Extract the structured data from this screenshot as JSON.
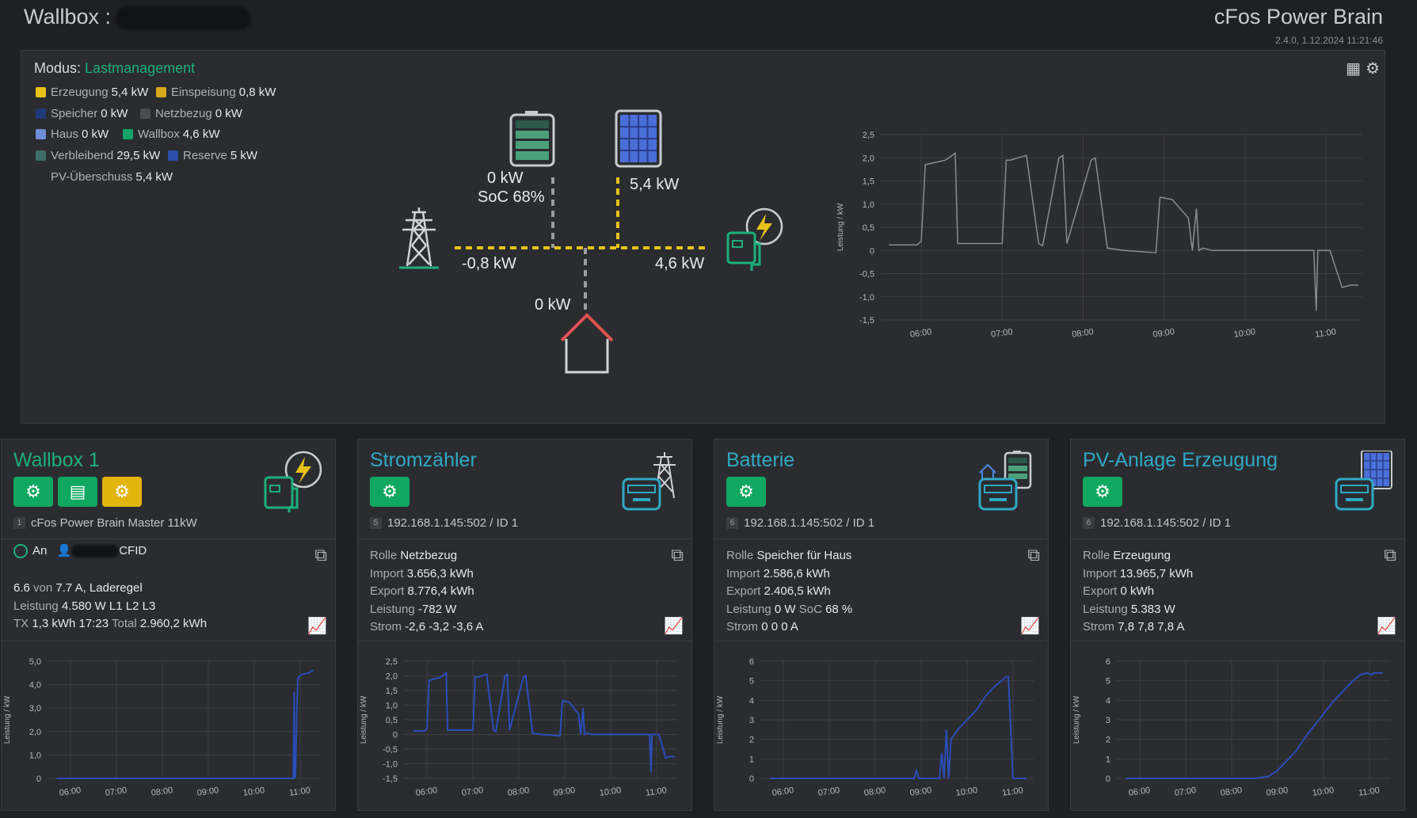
{
  "header": {
    "title": "Wallbox :",
    "brand": "cFos Power Brain",
    "version": "2.4.0, 1.12.2024 11:21:46"
  },
  "overview": {
    "mode_label": "Modus:",
    "mode_value": "Lastmanagement",
    "legend": [
      {
        "label": "Erzeugung",
        "value": "5,4 kW",
        "color": "#e8c21a"
      },
      {
        "label": "Einspeisung",
        "value": "0,8 kW",
        "color": "#d9a91c"
      },
      {
        "label": "Speicher",
        "value": "0 kW",
        "color": "#1e3a78"
      },
      {
        "label": "Netzbezug",
        "value": "0 kW",
        "color": "#4a4c52"
      },
      {
        "label": "Haus",
        "value": "0 kW",
        "color": "#6e8ed8"
      },
      {
        "label": "Wallbox",
        "value": "4,6 kW",
        "color": "#11a46a"
      },
      {
        "label": "Verbleibend",
        "value": "29,5 kW",
        "color": "#3f6e6a"
      },
      {
        "label": "Reserve",
        "value": "5 kW",
        "color": "#2b4ea8"
      },
      {
        "label": "PV-Überschuss",
        "value": "5,4 kW",
        "color": ""
      }
    ],
    "flow": {
      "battery_kw": "0 kW",
      "battery_soc": "SoC 68%",
      "pv_kw": "5,4 kW",
      "grid_kw": "-0,8 kW",
      "wallbox_kw": "4,6 kW",
      "house_kw": "0 kW"
    },
    "icons": [
      "qr-code-icon",
      "gear-icon"
    ]
  },
  "colors": {
    "accent_green": "#1bb07a",
    "accent_blue": "#2fa9c5",
    "button_green": "#10a860",
    "button_yellow": "#e2b40e",
    "flow_line": "#e8c21a"
  },
  "cards": [
    {
      "title": "Wallbox 1",
      "device_num": "1",
      "device": "cFos Power Brain Master 11kW",
      "status": "An",
      "user_suffix": "CFID",
      "lines": [
        {
          "v1": "6.6",
          "l1": " von ",
          "v2": "7.7 A, Laderegel",
          "l2": "",
          "v3": "",
          "l3": "",
          "v4": ""
        },
        {
          "l0": "Leistung ",
          "v1": "4.580 W L1 L2 L3"
        },
        {
          "l0": "TX ",
          "v1": "1,3 kWh 17:23",
          "l1": " Total ",
          "v2": "2.960,2 kWh"
        }
      ]
    },
    {
      "title": "Stromzähler",
      "device_num": "5",
      "device": "192.168.1.145:502 / ID 1",
      "lines": [
        {
          "l0": "Rolle ",
          "v1": "Netzbezug"
        },
        {
          "l0": "Import ",
          "v1": "3.656,3 kWh"
        },
        {
          "l0": "Export ",
          "v1": "8.776,4 kWh"
        },
        {
          "l0": "Leistung ",
          "v1": "-782 W"
        },
        {
          "l0": "Strom ",
          "v1": "-2,6 -3,2 -3,6 A"
        }
      ]
    },
    {
      "title": "Batterie",
      "device_num": "6",
      "device": "192.168.1.145:502 / ID 1",
      "lines": [
        {
          "l0": "Rolle ",
          "v1": "Speicher für Haus"
        },
        {
          "l0": "Import ",
          "v1": "2.586,6 kWh"
        },
        {
          "l0": "Export ",
          "v1": "2.406,5 kWh"
        },
        {
          "l0": "Leistung ",
          "v1": "0 W",
          "l1": " SoC ",
          "v2": "68 %"
        },
        {
          "l0": "Strom ",
          "v1": "0 0 0 A"
        }
      ]
    },
    {
      "title": "PV-Anlage Erzeugung",
      "device_num": "6",
      "device": "192.168.1.145:502 / ID 1",
      "lines": [
        {
          "l0": "Rolle ",
          "v1": "Erzeugung"
        },
        {
          "l0": "Import ",
          "v1": "13.965,7 kWh"
        },
        {
          "l0": "Export ",
          "v1": "0 kWh"
        },
        {
          "l0": "Leistung ",
          "v1": "5.383 W"
        },
        {
          "l0": "Strom ",
          "v1": "7,8 7,8 7,8 A"
        }
      ]
    }
  ],
  "chart_data": [
    {
      "type": "line",
      "ylabel": "Leistung / kW",
      "ylim": [
        -1.5,
        2.5
      ],
      "yticks": [
        "2,5",
        "2,0",
        "1,5",
        "1,0",
        "0,5",
        "0",
        "-0,5",
        "-1,0",
        "-1,5"
      ],
      "xticks": [
        "06:00",
        "07:00",
        "08:00",
        "09:00",
        "10:00",
        "11:00"
      ],
      "x": [
        5.6,
        5.95,
        6.0,
        6.05,
        6.3,
        6.42,
        6.45,
        6.5,
        7.0,
        7.05,
        7.1,
        7.3,
        7.45,
        7.5,
        7.7,
        7.75,
        7.8,
        8.1,
        8.15,
        8.3,
        8.5,
        8.9,
        8.95,
        9.1,
        9.3,
        9.35,
        9.4,
        9.43,
        9.48,
        9.6,
        10.0,
        10.5,
        10.85,
        10.88,
        10.9,
        10.95,
        11.05,
        11.2,
        11.3,
        11.4
      ],
      "y": [
        0.12,
        0.12,
        0.2,
        1.85,
        1.95,
        2.1,
        0.15,
        0.15,
        0.15,
        1.95,
        1.95,
        2.05,
        0.15,
        0.1,
        2.0,
        2.05,
        0.15,
        1.95,
        2.0,
        0.05,
        0.0,
        -0.05,
        1.15,
        1.1,
        0.7,
        0.0,
        0.9,
        0.0,
        0.05,
        0.0,
        0.0,
        0.0,
        0.0,
        -1.3,
        0.0,
        0.0,
        0.0,
        -0.8,
        -0.75,
        -0.75
      ]
    },
    {
      "type": "line",
      "ylabel": "Leistung / kW",
      "ylim": [
        0,
        5
      ],
      "yticks": [
        "5,0",
        "4,0",
        "3,0",
        "2,0",
        "1,0",
        "0"
      ],
      "xticks": [
        "06:00",
        "07:00",
        "08:00",
        "09:00",
        "10:00",
        "11:00"
      ],
      "x": [
        5.7,
        6.0,
        7.0,
        8.0,
        9.0,
        10.0,
        10.85,
        10.87,
        10.88,
        10.9,
        10.93,
        10.95,
        11.05,
        11.2,
        11.25,
        11.3
      ],
      "y": [
        0,
        0,
        0,
        0,
        0,
        0,
        0,
        3.7,
        0,
        0.1,
        3.0,
        4.3,
        4.45,
        4.5,
        4.6,
        4.6
      ]
    },
    {
      "type": "line",
      "ylabel": "Leistung / kW",
      "ylim": [
        -1.5,
        2.5
      ],
      "yticks": [
        "2,5",
        "2,0",
        "1,5",
        "1,0",
        "0,5",
        "0",
        "-0,5",
        "-1,0",
        "-1,5"
      ],
      "xticks": [
        "06:00",
        "07:00",
        "08:00",
        "09:00",
        "10:00",
        "11:00"
      ],
      "x": [
        5.7,
        5.95,
        6.0,
        6.05,
        6.3,
        6.42,
        6.45,
        6.5,
        7.0,
        7.05,
        7.1,
        7.3,
        7.45,
        7.5,
        7.7,
        7.75,
        7.8,
        8.1,
        8.15,
        8.3,
        8.5,
        8.9,
        8.95,
        9.1,
        9.3,
        9.35,
        9.4,
        9.43,
        9.48,
        9.6,
        10.0,
        10.5,
        10.85,
        10.88,
        10.9,
        10.95,
        11.05,
        11.2,
        11.3,
        11.4
      ],
      "y": [
        0.12,
        0.12,
        0.2,
        1.85,
        1.95,
        2.1,
        0.15,
        0.15,
        0.15,
        1.95,
        1.95,
        2.05,
        0.15,
        0.1,
        2.0,
        2.05,
        0.15,
        1.95,
        2.0,
        0.05,
        0.0,
        -0.05,
        1.15,
        1.1,
        0.7,
        0.0,
        0.9,
        0.0,
        0.05,
        0.0,
        0.0,
        0.0,
        0.0,
        -1.3,
        0.0,
        0.0,
        0.0,
        -0.8,
        -0.75,
        -0.75
      ]
    },
    {
      "type": "line",
      "ylabel": "Leistung / kW",
      "ylim": [
        0,
        6
      ],
      "yticks": [
        "6",
        "5",
        "4",
        "3",
        "2",
        "1",
        "0"
      ],
      "xticks": [
        "06:00",
        "07:00",
        "08:00",
        "09:00",
        "10:00",
        "11:00"
      ],
      "x": [
        5.7,
        6.0,
        7.0,
        8.0,
        8.85,
        8.9,
        8.95,
        9.4,
        9.45,
        9.5,
        9.55,
        9.6,
        9.65,
        9.8,
        10.0,
        10.2,
        10.4,
        10.6,
        10.8,
        10.85,
        10.9,
        11.0,
        11.2,
        11.3
      ],
      "y": [
        0,
        0,
        0,
        0,
        0,
        0.4,
        0,
        0,
        1.3,
        0,
        2.5,
        0,
        2.0,
        2.5,
        3.0,
        3.5,
        4.2,
        4.7,
        5.1,
        5.2,
        5.2,
        0.0,
        0.0,
        0.0
      ]
    },
    {
      "type": "line",
      "ylabel": "Leistung / kW",
      "ylim": [
        0,
        6
      ],
      "yticks": [
        "6",
        "5",
        "4",
        "3",
        "2",
        "1",
        "0"
      ],
      "xticks": [
        "06:00",
        "07:00",
        "08:00",
        "09:00",
        "10:00",
        "11:00"
      ],
      "x": [
        5.7,
        6.0,
        7.0,
        8.0,
        8.5,
        8.8,
        9.0,
        9.2,
        9.4,
        9.6,
        9.8,
        10.0,
        10.2,
        10.4,
        10.6,
        10.8,
        10.95,
        11.05,
        11.1,
        11.2,
        11.3
      ],
      "y": [
        0,
        0,
        0,
        0,
        0,
        0.1,
        0.4,
        0.9,
        1.4,
        2.1,
        2.7,
        3.3,
        3.9,
        4.4,
        4.9,
        5.3,
        5.4,
        5.3,
        5.4,
        5.4,
        5.4
      ]
    }
  ]
}
